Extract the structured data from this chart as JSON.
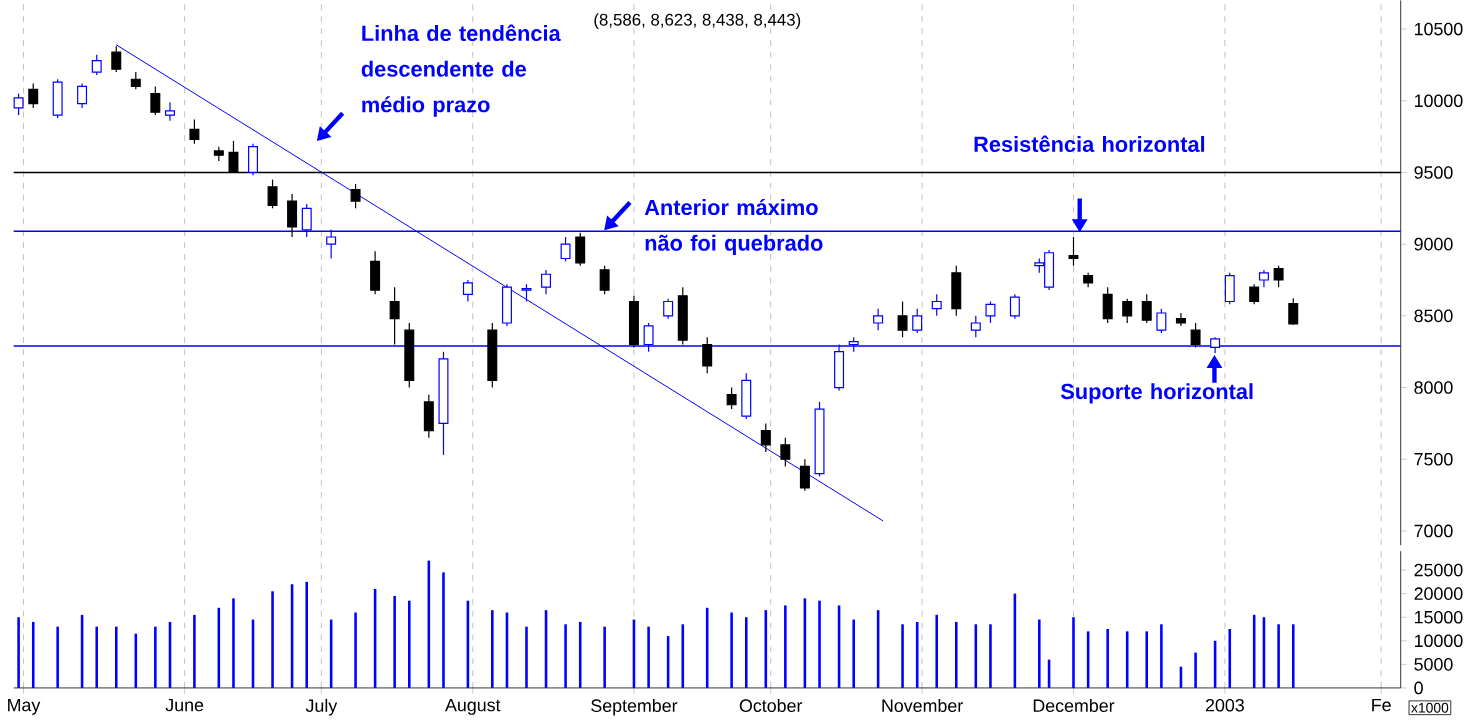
{
  "chart_data": [
    {
      "type": "candlestick",
      "title": "(8,586, 8,623, 8,438, 8,443)",
      "colors": [
        "#0000ff",
        "#000000",
        "#0000ff",
        "#0000ff",
        "#0000ff",
        "#000000",
        "#000000",
        "#000000",
        "#0000ff",
        "#000000",
        "#000000",
        "#000000",
        "#0000ff",
        "#000000",
        "#000000",
        "#0000ff",
        "#0000ff",
        "#000000",
        "#000000",
        "#000000",
        "#000000",
        "#000000",
        "#0000ff",
        "#0000ff",
        "#000000",
        "#0000ff",
        "#0000ff",
        "#0000ff",
        "#0000ff",
        "#000000",
        "#000000",
        "#000000",
        "#0000ff",
        "#0000ff",
        "#000000",
        "#000000",
        "#000000",
        "#0000ff",
        "#000000",
        "#000000",
        "#000000",
        "#0000ff",
        "#0000ff",
        "#0000ff",
        "#0000ff",
        "#000000",
        "#0000ff",
        "#0000ff",
        "#000000",
        "#0000ff",
        "#0000ff",
        "#0000ff",
        "#0000ff",
        "#0000ff",
        "#000000",
        "#000000",
        "#000000",
        "#000000",
        "#000000",
        "#0000ff",
        "#000000",
        "#000000",
        "#0000ff",
        "#0000ff",
        "#000000",
        "#0000ff",
        "#000000",
        "#000000"
      ],
      "annotations": [
        "Linha de tendência descendente de médio prazo",
        "Anterior máximo não foi quebrado",
        "Resistência horizontal",
        "Suporte horizontal"
      ],
      "x": [
        "2002-04-30",
        "2002-05-03",
        "2002-05-08",
        "2002-05-13",
        "2002-05-16",
        "2002-05-20",
        "2002-05-24",
        "2002-05-28",
        "2002-05-31",
        "2002-06-05",
        "2002-06-10",
        "2002-06-13",
        "2002-06-17",
        "2002-06-21",
        "2002-06-25",
        "2002-06-28",
        "2002-07-03",
        "2002-07-08",
        "2002-07-12",
        "2002-07-16",
        "2002-07-19",
        "2002-07-23",
        "2002-07-26",
        "2002-07-31",
        "2002-08-05",
        "2002-08-08",
        "2002-08-12",
        "2002-08-16",
        "2002-08-20",
        "2002-08-23",
        "2002-08-28",
        "2002-09-03",
        "2002-09-06",
        "2002-09-10",
        "2002-09-13",
        "2002-09-18",
        "2002-09-23",
        "2002-09-26",
        "2002-09-30",
        "2002-10-04",
        "2002-10-08",
        "2002-10-11",
        "2002-10-15",
        "2002-10-18",
        "2002-10-23",
        "2002-10-28",
        "2002-10-31",
        "2002-11-04",
        "2002-11-08",
        "2002-11-12",
        "2002-11-15",
        "2002-11-20",
        "2002-11-25",
        "2002-11-27",
        "2002-12-02",
        "2002-12-05",
        "2002-12-09",
        "2002-12-13",
        "2002-12-17",
        "2002-12-20",
        "2002-12-24",
        "2002-12-27",
        "2002-12-31",
        "2003-01-03",
        "2003-01-08",
        "2003-01-10",
        "2003-01-13",
        "2003-01-16"
      ],
      "ohlc": [
        [
          9950,
          10050,
          9900,
          10020
        ],
        [
          10080,
          10120,
          9950,
          9980
        ],
        [
          9900,
          10150,
          9880,
          10130
        ],
        [
          9980,
          10120,
          9950,
          10100
        ],
        [
          10200,
          10320,
          10180,
          10280
        ],
        [
          10340,
          10380,
          10200,
          10220
        ],
        [
          10150,
          10200,
          10080,
          10100
        ],
        [
          10050,
          10100,
          9900,
          9920
        ],
        [
          9900,
          9990,
          9860,
          9930
        ],
        [
          9800,
          9870,
          9700,
          9730
        ],
        [
          9650,
          9680,
          9580,
          9620
        ],
        [
          9640,
          9720,
          9500,
          9500
        ],
        [
          9500,
          9700,
          9480,
          9680
        ],
        [
          9400,
          9450,
          9250,
          9270
        ],
        [
          9300,
          9350,
          9050,
          9120
        ],
        [
          9100,
          9280,
          9050,
          9250
        ],
        [
          9000,
          9100,
          8900,
          9050
        ],
        [
          9380,
          9420,
          9250,
          9300
        ],
        [
          8880,
          8950,
          8650,
          8680
        ],
        [
          8600,
          8700,
          8300,
          8480
        ],
        [
          8400,
          8450,
          8000,
          8050
        ],
        [
          7900,
          7950,
          7650,
          7700
        ],
        [
          7750,
          8250,
          7530,
          8200
        ],
        [
          8650,
          8750,
          8600,
          8730
        ],
        [
          8400,
          8450,
          8000,
          8050
        ],
        [
          8450,
          8720,
          8430,
          8700
        ],
        [
          8680,
          8720,
          8600,
          8690
        ],
        [
          8700,
          8820,
          8650,
          8790
        ],
        [
          8900,
          9050,
          8880,
          9000
        ],
        [
          9050,
          9080,
          8850,
          8870
        ],
        [
          8820,
          8850,
          8650,
          8680
        ],
        [
          8600,
          8640,
          8280,
          8300
        ],
        [
          8300,
          8450,
          8250,
          8430
        ],
        [
          8500,
          8620,
          8480,
          8600
        ],
        [
          8640,
          8700,
          8300,
          8330
        ],
        [
          8300,
          8350,
          8100,
          8150
        ],
        [
          7950,
          8000,
          7850,
          7880
        ],
        [
          7800,
          8100,
          7780,
          8050
        ],
        [
          7700,
          7750,
          7550,
          7600
        ],
        [
          7600,
          7650,
          7450,
          7500
        ],
        [
          7450,
          7500,
          7280,
          7300
        ],
        [
          7400,
          7900,
          7380,
          7850
        ],
        [
          8000,
          8300,
          7980,
          8250
        ],
        [
          8300,
          8350,
          8250,
          8320
        ],
        [
          8450,
          8550,
          8400,
          8500
        ],
        [
          8500,
          8600,
          8350,
          8400
        ],
        [
          8400,
          8550,
          8380,
          8500
        ],
        [
          8550,
          8650,
          8500,
          8600
        ],
        [
          8800,
          8850,
          8500,
          8550
        ],
        [
          8400,
          8500,
          8350,
          8450
        ],
        [
          8500,
          8600,
          8450,
          8580
        ],
        [
          8500,
          8650,
          8480,
          8630
        ],
        [
          8850,
          8900,
          8800,
          8870
        ],
        [
          8700,
          8960,
          8680,
          8940
        ],
        [
          8920,
          9050,
          8850,
          8900
        ],
        [
          8780,
          8800,
          8700,
          8730
        ],
        [
          8650,
          8700,
          8450,
          8480
        ],
        [
          8600,
          8620,
          8450,
          8500
        ],
        [
          8600,
          8650,
          8450,
          8470
        ],
        [
          8400,
          8550,
          8380,
          8520
        ],
        [
          8480,
          8520,
          8430,
          8450
        ],
        [
          8400,
          8450,
          8280,
          8300
        ],
        [
          8280,
          8350,
          8240,
          8340
        ],
        [
          8600,
          8800,
          8580,
          8780
        ],
        [
          8700,
          8720,
          8580,
          8600
        ],
        [
          8750,
          8820,
          8700,
          8800
        ],
        [
          8830,
          8850,
          8700,
          8750
        ],
        [
          8586,
          8623,
          8438,
          8443
        ]
      ],
      "series": [
        {
          "type": "line",
          "color": "#0000ff",
          "x": [
            "2002-05-20",
            "2002-10-24"
          ],
          "values": [
            10390,
            7070
          ]
        }
      ],
      "ref_lines": [
        {
          "axis": "y",
          "value": 9500,
          "color": "#000000"
        },
        {
          "axis": "y",
          "value": 9090,
          "color": "#0000ff"
        },
        {
          "axis": "y",
          "value": 8290,
          "color": "#0000ff"
        }
      ],
      "xlim": [
        "2002-04-29",
        "2003-02-07"
      ],
      "xticks": [
        {
          "value": "2002-05-01",
          "label": null
        },
        {
          "value": "2002-06-03",
          "label": null
        },
        {
          "value": "2002-07-01",
          "label": null
        },
        {
          "value": "2002-08-01",
          "label": null
        },
        {
          "value": "2002-09-03",
          "label": null
        },
        {
          "value": "2002-10-01",
          "label": null
        },
        {
          "value": "2002-11-01",
          "label": null
        },
        {
          "value": "2002-12-02",
          "label": null
        },
        {
          "value": "2003-01-02",
          "label": null
        },
        {
          "value": "2003-02-03",
          "label": null
        }
      ],
      "ylim": [
        6900,
        10700
      ],
      "yticks": [
        7000,
        7500,
        8000,
        8500,
        9000,
        9500,
        10000,
        10500
      ],
      "grid": "x",
      "tick_labels": "y"
    },
    {
      "type": "bar",
      "color": "#0000ff",
      "ylabel": "x1000",
      "x": [
        "2002-04-30",
        "2002-05-03",
        "2002-05-08",
        "2002-05-13",
        "2002-05-16",
        "2002-05-20",
        "2002-05-24",
        "2002-05-28",
        "2002-05-31",
        "2002-06-05",
        "2002-06-10",
        "2002-06-13",
        "2002-06-17",
        "2002-06-21",
        "2002-06-25",
        "2002-06-28",
        "2002-07-03",
        "2002-07-08",
        "2002-07-12",
        "2002-07-16",
        "2002-07-19",
        "2002-07-23",
        "2002-07-26",
        "2002-07-31",
        "2002-08-05",
        "2002-08-08",
        "2002-08-12",
        "2002-08-16",
        "2002-08-20",
        "2002-08-23",
        "2002-08-28",
        "2002-09-03",
        "2002-09-06",
        "2002-09-10",
        "2002-09-13",
        "2002-09-18",
        "2002-09-23",
        "2002-09-26",
        "2002-09-30",
        "2002-10-04",
        "2002-10-08",
        "2002-10-11",
        "2002-10-15",
        "2002-10-18",
        "2002-10-23",
        "2002-10-28",
        "2002-10-31",
        "2002-11-04",
        "2002-11-08",
        "2002-11-12",
        "2002-11-15",
        "2002-11-20",
        "2002-11-25",
        "2002-11-27",
        "2002-12-02",
        "2002-12-05",
        "2002-12-09",
        "2002-12-13",
        "2002-12-17",
        "2002-12-20",
        "2002-12-24",
        "2002-12-27",
        "2002-12-31",
        "2003-01-03",
        "2003-01-08",
        "2003-01-10",
        "2003-01-13",
        "2003-01-16"
      ],
      "values": [
        15000,
        14000,
        13000,
        15500,
        13000,
        13000,
        11500,
        13000,
        14000,
        15500,
        17000,
        19000,
        14500,
        20500,
        22000,
        22500,
        14500,
        16000,
        21000,
        19500,
        18500,
        27000,
        24500,
        18500,
        16500,
        16000,
        13000,
        16500,
        13500,
        14000,
        13000,
        14500,
        13000,
        11000,
        13500,
        17000,
        16000,
        15000,
        16500,
        17500,
        19000,
        18500,
        17500,
        14500,
        16500,
        13500,
        14000,
        15500,
        14000,
        13500,
        13500,
        20000,
        14500,
        6000,
        15000,
        12000,
        12500,
        12000,
        12000,
        13500,
        4500,
        7500,
        10000,
        12500,
        15500,
        15000,
        13500,
        13500
      ],
      "xlim": [
        "2002-04-29",
        "2003-02-07"
      ],
      "xticks": [
        {
          "value": "2002-05-01",
          "label": "May"
        },
        {
          "value": "2002-06-03",
          "label": "June"
        },
        {
          "value": "2002-07-01",
          "label": "July"
        },
        {
          "value": "2002-08-01",
          "label": "August"
        },
        {
          "value": "2002-09-03",
          "label": "September"
        },
        {
          "value": "2002-10-01",
          "label": "October"
        },
        {
          "value": "2002-11-01",
          "label": "November"
        },
        {
          "value": "2002-12-02",
          "label": "December"
        },
        {
          "value": "2003-01-02",
          "label": "2003"
        },
        {
          "value": "2003-02-03",
          "label": "Fe"
        }
      ],
      "ylim": [
        0,
        29000
      ],
      "yticks": [
        0,
        5000,
        10000,
        15000,
        20000,
        25000
      ],
      "grid": "x"
    }
  ]
}
